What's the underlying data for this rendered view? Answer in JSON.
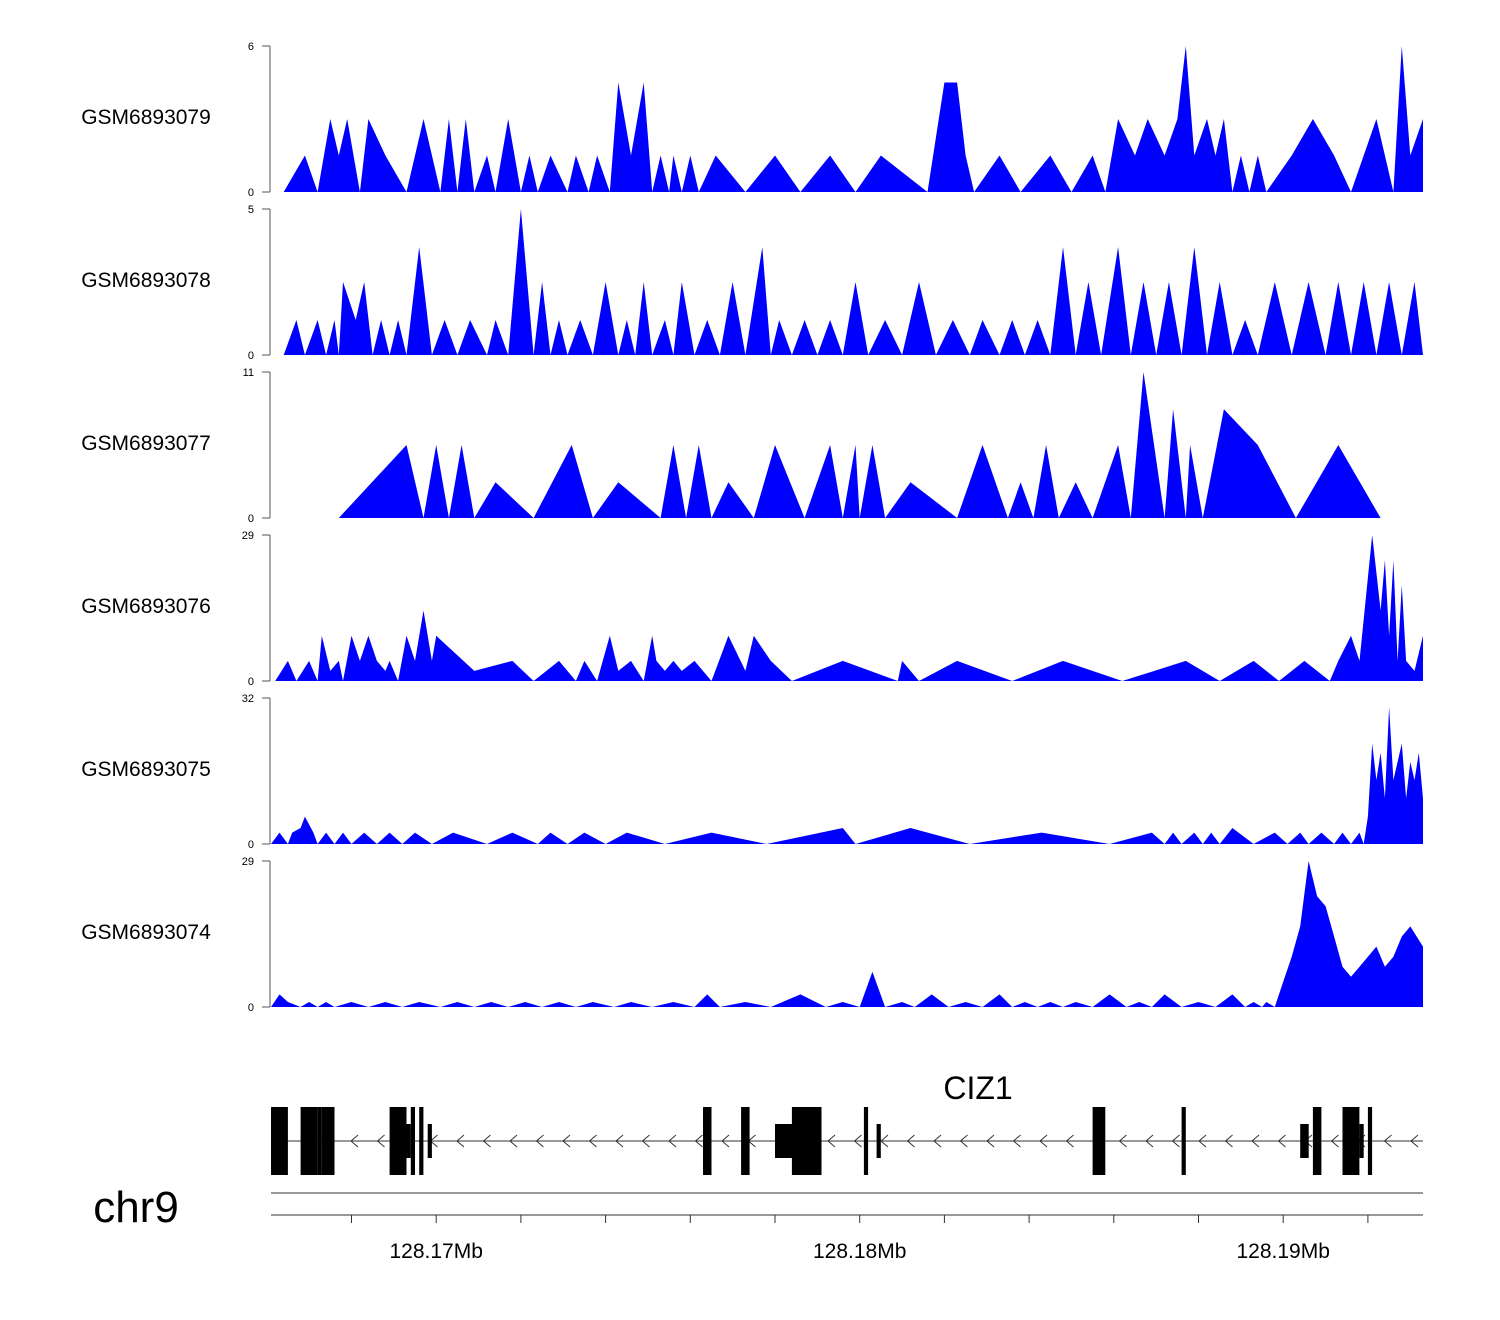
{
  "chart_data": {
    "type": "area",
    "title": "",
    "chromosome": "chr9",
    "xlabel": "",
    "xlim_mb": [
      128.1661,
      128.1933
    ],
    "x_ticks": [
      {
        "value": 128.168,
        "label": ""
      },
      {
        "value": 128.17,
        "label": "128.17Mb"
      },
      {
        "value": 128.172,
        "label": ""
      },
      {
        "value": 128.174,
        "label": ""
      },
      {
        "value": 128.176,
        "label": ""
      },
      {
        "value": 128.178,
        "label": ""
      },
      {
        "value": 128.18,
        "label": "128.18Mb"
      },
      {
        "value": 128.182,
        "label": ""
      },
      {
        "value": 128.184,
        "label": ""
      },
      {
        "value": 128.186,
        "label": ""
      },
      {
        "value": 128.188,
        "label": ""
      },
      {
        "value": 128.19,
        "label": "128.19Mb"
      },
      {
        "value": 128.192,
        "label": ""
      }
    ],
    "track_color": "#0000ff",
    "series": [
      {
        "name": "GSM6893079",
        "ylim": [
          0,
          6
        ],
        "ymin_label": "0",
        "ymax_label": "6",
        "x": [
          128.1664,
          128.1669,
          128.1672,
          128.1675,
          128.1677,
          128.1679,
          128.1682,
          128.1684,
          128.1688,
          128.1693,
          128.1697,
          128.1701,
          128.1703,
          128.1705,
          128.1707,
          128.1709,
          128.1712,
          128.1714,
          128.1717,
          128.172,
          128.1722,
          128.1724,
          128.1727,
          128.1731,
          128.1733,
          128.1736,
          128.1738,
          128.1741,
          128.1743,
          128.1746,
          128.1749,
          128.1751,
          128.1753,
          128.1755,
          128.1756,
          128.1758,
          128.176,
          128.1762,
          128.1766,
          128.1773,
          128.178,
          128.1786,
          128.1793,
          128.1799,
          128.1805,
          128.1816,
          128.182,
          128.1823,
          128.1825,
          128.1827,
          128.1833,
          128.1838,
          128.1845,
          128.185,
          128.1855,
          128.1858,
          128.1861,
          128.1865,
          128.1868,
          128.1872,
          128.1875,
          128.1877,
          128.1879,
          128.1882,
          128.1884,
          128.1886,
          128.1888,
          128.189,
          128.1892,
          128.1894,
          128.1896,
          128.1902,
          128.1907,
          128.1912,
          128.1916,
          128.1919,
          128.1922,
          128.1926,
          128.1928,
          128.193,
          128.1933
        ],
        "y": [
          0,
          1.5,
          0,
          3,
          1.5,
          3,
          0,
          3,
          1.5,
          0,
          3,
          0,
          3,
          0,
          3,
          0,
          1.5,
          0,
          3,
          0,
          1.5,
          0,
          1.5,
          0,
          1.5,
          0,
          1.5,
          0,
          4.5,
          1.5,
          4.5,
          0,
          1.5,
          0,
          1.5,
          0,
          1.5,
          0,
          1.5,
          0,
          1.5,
          0,
          1.5,
          0,
          1.5,
          0,
          4.5,
          4.5,
          1.5,
          0,
          1.5,
          0,
          1.5,
          0,
          1.5,
          0,
          3,
          1.5,
          3,
          1.5,
          3,
          6,
          1.5,
          3,
          1.5,
          3,
          0,
          1.5,
          0,
          1.5,
          0,
          1.5,
          3,
          1.5,
          0,
          1.5,
          3,
          0,
          6,
          1.5,
          3
        ]
      },
      {
        "name": "GSM6893078",
        "ylim": [
          0,
          5
        ],
        "ymin_label": "0",
        "ymax_label": "5",
        "x": [
          128.1664,
          128.1667,
          128.1669,
          128.1672,
          128.1674,
          128.1676,
          128.1677,
          128.1678,
          128.1681,
          128.1683,
          128.1685,
          128.1687,
          128.1689,
          128.1691,
          128.1693,
          128.1696,
          128.1699,
          128.1702,
          128.1705,
          128.1708,
          128.1712,
          128.1714,
          128.1717,
          128.172,
          128.1723,
          128.1725,
          128.1727,
          128.1729,
          128.1731,
          128.1734,
          128.1737,
          128.174,
          128.1743,
          128.1745,
          128.1747,
          128.1749,
          128.1751,
          128.1754,
          128.1756,
          128.1758,
          128.1761,
          128.1764,
          128.1767,
          128.177,
          128.1773,
          128.1777,
          128.1779,
          128.1781,
          128.1784,
          128.1787,
          128.179,
          128.1793,
          128.1796,
          128.1799,
          128.1802,
          128.1806,
          128.181,
          128.1814,
          128.1818,
          128.1822,
          128.1826,
          128.1829,
          128.1833,
          128.1836,
          128.1839,
          128.1842,
          128.1845,
          128.1848,
          128.1851,
          128.1854,
          128.1857,
          128.1861,
          128.1864,
          128.1867,
          128.187,
          128.1873,
          128.1876,
          128.1879,
          128.1882,
          128.1885,
          128.1888,
          128.1891,
          128.1894,
          128.1898,
          128.1902,
          128.1906,
          128.191,
          128.1913,
          128.1916,
          128.1919,
          128.1922,
          128.1925,
          128.1928,
          128.1931,
          128.1933
        ],
        "y": [
          0,
          1.2,
          0,
          1.2,
          0,
          1.2,
          0,
          2.5,
          1.2,
          2.5,
          0,
          1.2,
          0,
          1.2,
          0,
          3.7,
          0,
          1.2,
          0,
          1.2,
          0,
          1.2,
          0,
          5,
          0,
          2.5,
          0,
          1.2,
          0,
          1.2,
          0,
          2.5,
          0,
          1.2,
          0,
          2.5,
          0,
          1.2,
          0,
          2.5,
          0,
          1.2,
          0,
          2.5,
          0,
          3.7,
          0,
          1.2,
          0,
          1.2,
          0,
          1.2,
          0,
          2.5,
          0,
          1.2,
          0,
          2.5,
          0,
          1.2,
          0,
          1.2,
          0,
          1.2,
          0,
          1.2,
          0,
          3.7,
          0,
          2.5,
          0,
          3.7,
          0,
          2.5,
          0,
          2.5,
          0,
          3.7,
          0,
          2.5,
          0,
          1.2,
          0,
          2.5,
          0,
          2.5,
          0,
          2.5,
          0,
          2.5,
          0,
          2.5,
          0,
          2.5,
          0
        ]
      },
      {
        "name": "GSM6893077",
        "ylim": [
          0,
          11
        ],
        "ymin_label": "0",
        "ymax_label": "11",
        "x": [
          128.1677,
          128.1693,
          128.1697,
          128.17,
          128.1703,
          128.1706,
          128.1709,
          128.1714,
          128.1723,
          128.1732,
          128.1737,
          128.1743,
          128.1753,
          128.1756,
          128.1759,
          128.1762,
          128.1765,
          128.1769,
          128.1775,
          128.178,
          128.1787,
          128.1793,
          128.1796,
          128.1799,
          128.18,
          128.1803,
          128.1806,
          128.1812,
          128.1823,
          128.1829,
          128.1835,
          128.1838,
          128.1841,
          128.1844,
          128.1847,
          128.1851,
          128.1855,
          128.1861,
          128.1864,
          128.1867,
          128.1872,
          128.1874,
          128.1877,
          128.1878,
          128.1881,
          128.1886,
          128.1894,
          128.1903,
          128.1913,
          128.1923,
          128.1928
        ],
        "y": [
          0,
          5.5,
          0,
          5.5,
          0,
          5.5,
          0,
          2.7,
          0,
          5.5,
          0,
          2.7,
          0,
          5.5,
          0,
          5.5,
          0,
          2.7,
          0,
          5.5,
          0,
          5.5,
          0,
          5.5,
          0,
          5.5,
          0,
          2.7,
          0,
          5.5,
          0,
          2.7,
          0,
          5.5,
          0,
          2.7,
          0,
          5.5,
          0,
          11,
          0,
          8.2,
          0,
          5.5,
          0,
          8.2,
          5.5,
          0,
          5.5,
          0,
          0
        ]
      },
      {
        "name": "GSM6893076",
        "ylim": [
          0,
          29
        ],
        "ymin_label": "0",
        "ymax_label": "29",
        "x": [
          128.1662,
          128.1665,
          128.1667,
          128.167,
          128.1672,
          128.1673,
          128.1675,
          128.1677,
          128.1678,
          128.168,
          128.1682,
          128.1684,
          128.1686,
          128.1688,
          128.1689,
          128.1691,
          128.1693,
          128.1695,
          128.1697,
          128.1699,
          128.17,
          128.1709,
          128.1718,
          128.1723,
          128.1729,
          128.1733,
          128.1735,
          128.1738,
          128.1741,
          128.1743,
          128.1746,
          128.1749,
          128.1751,
          128.1752,
          128.1754,
          128.1756,
          128.1758,
          128.1761,
          128.1765,
          128.1769,
          128.1773,
          128.1775,
          128.1779,
          128.1784,
          128.1796,
          128.1809,
          128.181,
          128.1814,
          128.1823,
          128.1836,
          128.1848,
          128.1862,
          128.1877,
          128.1885,
          128.1893,
          128.1899,
          128.1905,
          128.1911,
          128.1913,
          128.1916,
          128.1918,
          128.1921,
          128.1923,
          128.1924,
          128.1925,
          128.1926,
          128.1927,
          128.1928,
          128.1929,
          128.1931,
          128.1933
        ],
        "y": [
          0,
          4,
          0,
          4,
          0,
          9,
          2,
          4,
          0,
          9,
          4,
          9,
          4,
          2,
          4,
          0,
          9,
          4,
          14,
          4,
          9,
          2,
          4,
          0,
          4,
          0,
          4,
          0,
          9,
          2,
          4,
          0,
          9,
          4,
          2,
          4,
          2,
          4,
          0,
          9,
          2,
          9,
          4,
          0,
          4,
          0,
          4,
          0,
          4,
          0,
          4,
          0,
          4,
          0,
          4,
          0,
          4,
          0,
          4,
          9,
          4,
          29,
          14,
          24,
          9,
          24,
          4,
          19,
          4,
          2,
          9
        ]
      },
      {
        "name": "GSM6893075",
        "ylim": [
          0,
          32
        ],
        "ymin_label": "0",
        "ymax_label": "32",
        "x": [
          128.1661,
          128.1663,
          128.1665,
          128.1666,
          128.1668,
          128.1669,
          128.1671,
          128.1672,
          128.1674,
          128.1676,
          128.1678,
          128.168,
          128.1683,
          128.1686,
          128.1689,
          128.1692,
          128.1695,
          128.1699,
          128.1704,
          128.1712,
          128.1718,
          128.1724,
          128.1727,
          128.1731,
          128.1735,
          128.174,
          128.1745,
          128.1754,
          128.1765,
          128.1778,
          128.1796,
          128.1799,
          128.1812,
          128.1826,
          128.1843,
          128.1859,
          128.1869,
          128.1872,
          128.1874,
          128.1876,
          128.1879,
          128.1881,
          128.1883,
          128.1885,
          128.1888,
          128.1893,
          128.1898,
          128.1901,
          128.1904,
          128.1906,
          128.1909,
          128.1912,
          128.1914,
          128.1916,
          128.1918,
          128.1919,
          128.192,
          128.1921,
          128.1922,
          128.1923,
          128.1924,
          128.1925,
          128.1926,
          128.1928,
          128.1929,
          128.193,
          128.1931,
          128.1932,
          128.1933
        ],
        "y": [
          0,
          2.5,
          0,
          2.5,
          3.5,
          6,
          2.5,
          0,
          2.5,
          0,
          2.5,
          0,
          2.5,
          0,
          2.5,
          0,
          2.5,
          0,
          2.5,
          0,
          2.5,
          0,
          2.5,
          0,
          2.5,
          0,
          2.5,
          0,
          2.5,
          0,
          3.5,
          0,
          3.5,
          0,
          2.5,
          0,
          2.5,
          0,
          2.5,
          0,
          2.5,
          0,
          2.5,
          0,
          3.5,
          0,
          2.5,
          0,
          2.5,
          0,
          2.5,
          0,
          2.5,
          0,
          2.5,
          0,
          6,
          22,
          14,
          20,
          10,
          30,
          14,
          22,
          10,
          18,
          14,
          20,
          10
        ]
      },
      {
        "name": "GSM6893074",
        "ylim": [
          0,
          29
        ],
        "ymin_label": "0",
        "ymax_label": "29",
        "x": [
          128.1661,
          128.1663,
          128.1665,
          128.1668,
          128.167,
          128.1672,
          128.1674,
          128.1676,
          128.168,
          128.1684,
          128.1688,
          128.1692,
          128.1696,
          128.1701,
          128.1705,
          128.1709,
          128.1713,
          128.1717,
          128.1721,
          128.1725,
          128.1729,
          128.1733,
          128.1737,
          128.1742,
          128.1746,
          128.1751,
          128.1756,
          128.1761,
          128.1764,
          128.1767,
          128.1773,
          128.1779,
          128.1786,
          128.1792,
          128.1796,
          128.18,
          128.1803,
          128.1806,
          128.181,
          128.1813,
          128.1817,
          128.1821,
          128.1825,
          128.1829,
          128.1833,
          128.1836,
          128.1839,
          128.1842,
          128.1845,
          128.1848,
          128.1851,
          128.1855,
          128.1859,
          128.1863,
          128.1866,
          128.1869,
          128.1872,
          128.1876,
          128.188,
          128.1884,
          128.1888,
          128.1891,
          128.1893,
          128.1895,
          128.1896,
          128.1898,
          128.19,
          128.1902,
          128.1904,
          128.1906,
          128.1908,
          128.191,
          128.1912,
          128.1914,
          128.1916,
          128.1918,
          128.192,
          128.1922,
          128.1924,
          128.1926,
          128.1928,
          128.193,
          128.1933
        ],
        "y": [
          0,
          2.5,
          1,
          0,
          1,
          0,
          1,
          0,
          1,
          0,
          1,
          0,
          1,
          0,
          1,
          0,
          1,
          0,
          1,
          0,
          1,
          0,
          1,
          0,
          1,
          0,
          1,
          0,
          2.5,
          0,
          1,
          0,
          2.5,
          0,
          1,
          0,
          7,
          0,
          1,
          0,
          2.5,
          0,
          1,
          0,
          2.5,
          0,
          1,
          0,
          1,
          0,
          1,
          0,
          2.5,
          0,
          1,
          0,
          2.5,
          0,
          1,
          0,
          2.5,
          0,
          1,
          0,
          1,
          0,
          5,
          10,
          16,
          29,
          22,
          20,
          14,
          8,
          6,
          8,
          10,
          12,
          8,
          10,
          14,
          16,
          12
        ]
      }
    ],
    "gene_track": {
      "gene_name": "CIZ1",
      "strand": "-",
      "start": 128.1661,
      "end": 128.1933,
      "exons": [
        {
          "start": 128.1661,
          "end": 128.1665
        },
        {
          "start": 128.1661,
          "end": 128.1664
        },
        {
          "start": 128.1668,
          "end": 128.1672
        },
        {
          "start": 128.1673,
          "end": 128.1676
        },
        {
          "start": 128.1669,
          "end": 128.167
        },
        {
          "start": 128.1672,
          "end": 128.1673
        },
        {
          "start": 128.1689,
          "end": 128.1693
        },
        {
          "start": 128.1692,
          "end": 128.1694
        },
        {
          "start": 128.1694,
          "end": 128.1695
        },
        {
          "start": 128.1696,
          "end": 128.1697
        },
        {
          "start": 128.1698,
          "end": 128.1699
        },
        {
          "start": 128.1763,
          "end": 128.1765
        },
        {
          "start": 128.1772,
          "end": 128.1774
        },
        {
          "start": 128.178,
          "end": 128.1785
        },
        {
          "start": 128.1784,
          "end": 128.1791
        },
        {
          "start": 128.1801,
          "end": 128.1802
        },
        {
          "start": 128.1804,
          "end": 128.1805
        },
        {
          "start": 128.1855,
          "end": 128.1858
        },
        {
          "start": 128.1876,
          "end": 128.1877
        },
        {
          "start": 128.1904,
          "end": 128.1906
        },
        {
          "start": 128.1907,
          "end": 128.1909
        },
        {
          "start": 128.1914,
          "end": 128.1918
        },
        {
          "start": 128.1918,
          "end": 128.1919
        },
        {
          "start": 128.192,
          "end": 128.1921
        }
      ]
    }
  }
}
